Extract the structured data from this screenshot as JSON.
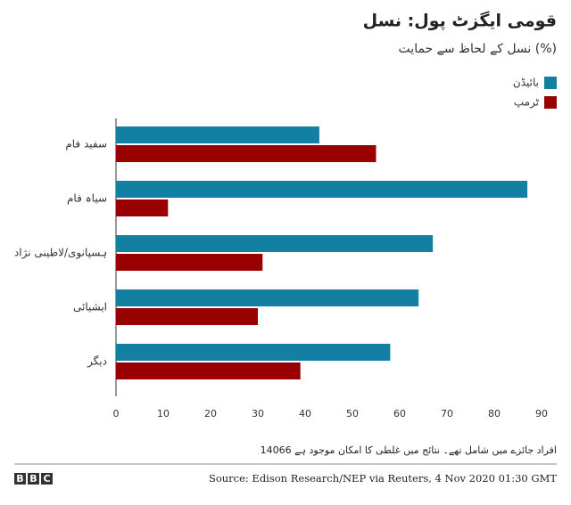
{
  "chart_data": {
    "type": "bar",
    "orientation": "horizontal",
    "title": "قومی ایگزٹ پول: نسل",
    "subtitle": "نسل کے لحاظ سے حمایت (%)",
    "categories": [
      "سفید فام",
      "سیاہ فام",
      "ہسپانوی/لاطینی نژاد",
      "ایشیائی",
      "دیگر"
    ],
    "series": [
      {
        "name": "بائیڈن",
        "color": "#1380a1",
        "values": [
          43,
          87,
          67,
          64,
          58
        ]
      },
      {
        "name": "ٹرمپ",
        "color": "#990000",
        "values": [
          55,
          11,
          31,
          30,
          39
        ]
      }
    ],
    "xlim": [
      0,
      90
    ],
    "xticks": [
      0,
      10,
      20,
      30,
      40,
      50,
      60,
      70,
      80,
      90
    ],
    "legend": "top-right",
    "grid": false,
    "note": "14066 افراد جائزے میں شامل تھے۔ نتائج میں غلطی کا امکان موجود ہے",
    "source": "Source: Edison Research/NEP via Reuters, 4 Nov 2020 01:30 GMT",
    "logo": [
      "B",
      "B",
      "C"
    ]
  }
}
